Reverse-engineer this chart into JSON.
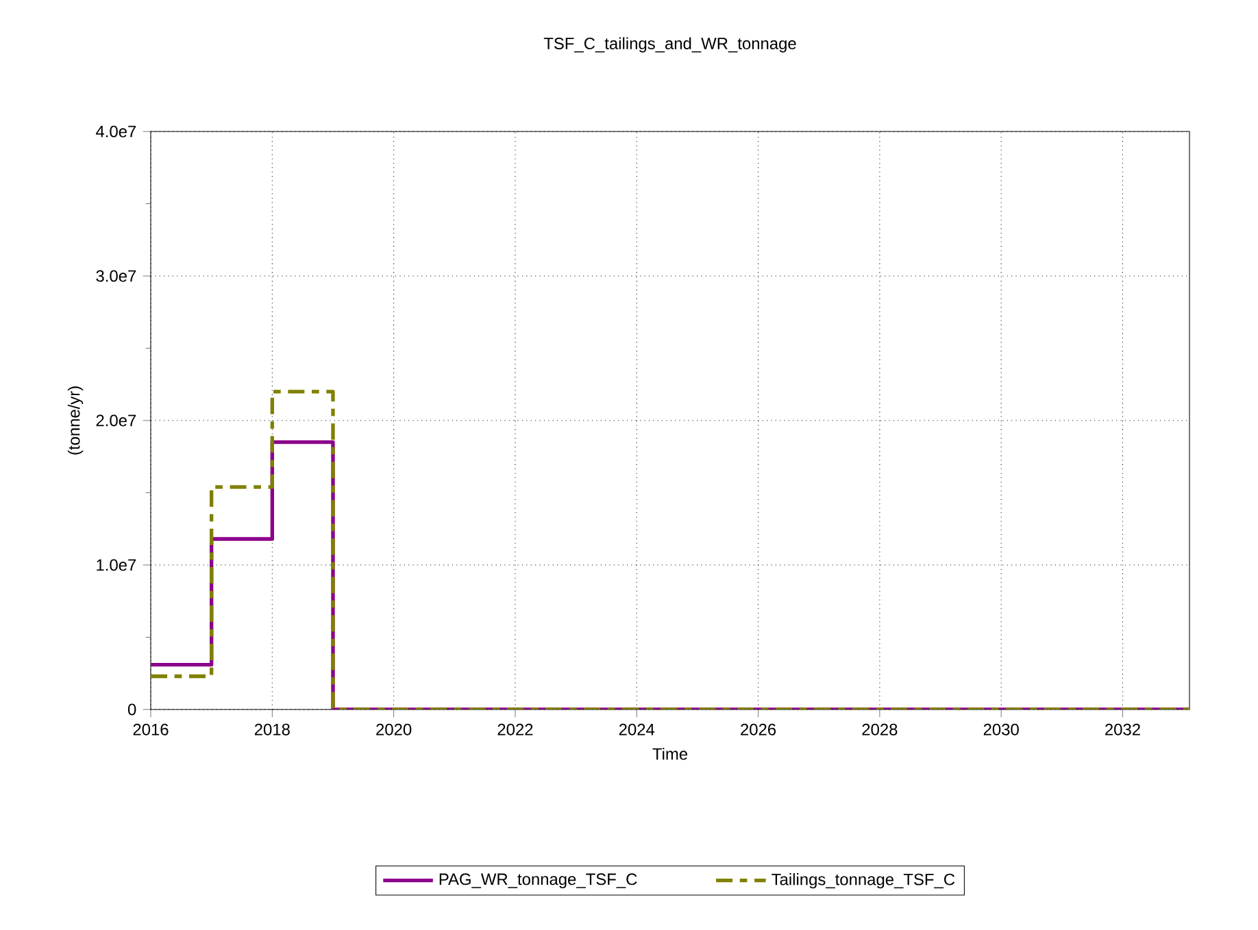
{
  "chart_data": {
    "type": "step",
    "title": "TSF_C_tailings_and_WR_tonnage",
    "xlabel": "Time",
    "ylabel": "(tonne/yr)",
    "x": [
      2016,
      2017,
      2018,
      2019,
      2033.1
    ],
    "series": [
      {
        "name": "PAG_WR_tonnage_TSF_C",
        "color": "#8b008b",
        "line_style": "solid",
        "values": [
          3100000,
          11800000,
          18500000,
          0,
          0
        ]
      },
      {
        "name": "Tailings_tonnage_TSF_C",
        "color": "#808000",
        "line_style": "dashed",
        "values": [
          2300000,
          15400000,
          22000000,
          0,
          0
        ]
      }
    ],
    "xlim": [
      2016,
      2033.1
    ],
    "xticks": [
      2016,
      2018,
      2020,
      2022,
      2024,
      2026,
      2028,
      2030,
      2032
    ],
    "ylim": [
      0,
      40000000
    ],
    "yticks": [
      0,
      {
        "value": 10000000,
        "label": "1.0e7"
      },
      {
        "value": 20000000,
        "label": "2.0e7"
      },
      {
        "value": 30000000,
        "label": "3.0e7"
      },
      {
        "value": 40000000,
        "label": "4.0e7"
      }
    ],
    "grid": true,
    "legend": "bottom",
    "marker": "none"
  }
}
